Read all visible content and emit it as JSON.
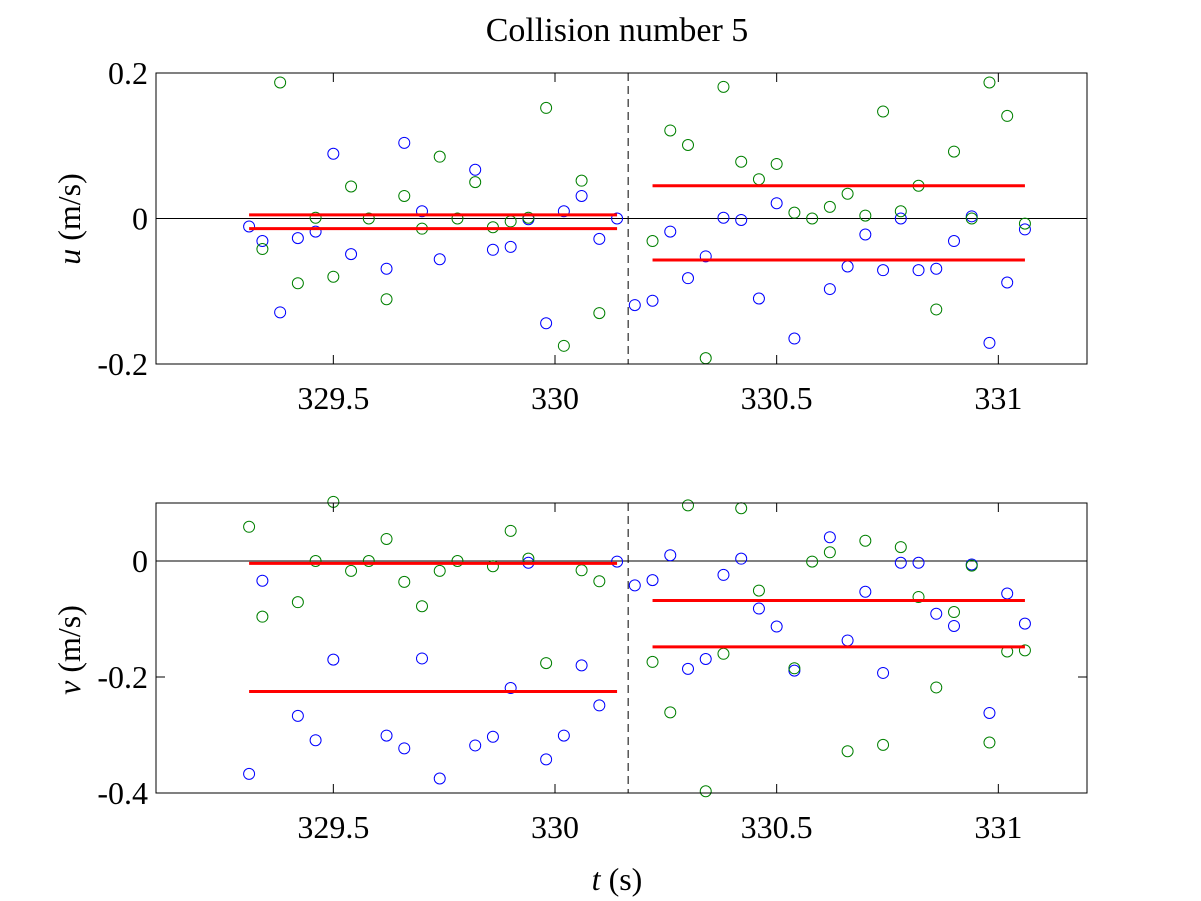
{
  "chart_data": {
    "type": "scatter",
    "title": "Collision number 5",
    "xlabel": "t",
    "xlabel_unit": "(s)",
    "collision_time": 330.165,
    "colors": {
      "blue": "#0000ff",
      "green": "#008000",
      "red": "#ff0000",
      "black": "#000000"
    },
    "panels": [
      {
        "ylabel": "u",
        "ylabel_unit": "(m/s)",
        "xlim": [
          329.1,
          331.2
        ],
        "ylim": [
          -0.2,
          0.2
        ],
        "xticks": [
          "329.5",
          "330",
          "330.5",
          "331"
        ],
        "yticks": [
          "0.2",
          "0",
          "-0.2"
        ],
        "blue": [
          [
            329.31,
            -0.011
          ],
          [
            329.34,
            -0.031
          ],
          [
            329.38,
            -0.129
          ],
          [
            329.42,
            -0.027
          ],
          [
            329.46,
            -0.018
          ],
          [
            329.5,
            0.089
          ],
          [
            329.54,
            -0.049
          ],
          [
            329.62,
            -0.069
          ],
          [
            329.66,
            0.104
          ],
          [
            329.7,
            0.01
          ],
          [
            329.74,
            -0.056
          ],
          [
            329.86,
            -0.043
          ],
          [
            329.9,
            -0.039
          ],
          [
            329.94,
            -0.001
          ],
          [
            329.98,
            -0.144
          ],
          [
            330.02,
            0.01
          ],
          [
            330.06,
            0.031
          ],
          [
            330.1,
            -0.028
          ],
          [
            330.14,
            0.0
          ],
          [
            330.18,
            -0.119
          ],
          [
            330.22,
            -0.113
          ],
          [
            330.26,
            -0.018
          ],
          [
            330.3,
            -0.082
          ],
          [
            330.34,
            -0.052
          ],
          [
            330.38,
            0.001
          ],
          [
            330.42,
            -0.002
          ],
          [
            330.46,
            -0.11
          ],
          [
            330.5,
            0.021
          ],
          [
            330.54,
            -0.165
          ],
          [
            330.62,
            -0.097
          ],
          [
            330.66,
            -0.066
          ],
          [
            330.7,
            -0.022
          ],
          [
            330.74,
            -0.071
          ],
          [
            330.78,
            0.0
          ],
          [
            330.82,
            -0.071
          ],
          [
            330.86,
            -0.069
          ],
          [
            330.9,
            -0.031
          ],
          [
            330.94,
            0.003
          ],
          [
            330.98,
            -0.171
          ],
          [
            331.02,
            -0.088
          ],
          [
            331.06,
            -0.015
          ],
          [
            329.82,
            0.067
          ]
        ],
        "green": [
          [
            329.34,
            -0.042
          ],
          [
            329.38,
            0.187
          ],
          [
            329.42,
            -0.089
          ],
          [
            329.46,
            0.001
          ],
          [
            329.5,
            -0.08
          ],
          [
            329.54,
            0.044
          ],
          [
            329.58,
            0.0
          ],
          [
            329.62,
            -0.111
          ],
          [
            329.66,
            0.031
          ],
          [
            329.7,
            -0.014
          ],
          [
            329.74,
            0.085
          ],
          [
            329.78,
            0.0
          ],
          [
            329.82,
            0.05
          ],
          [
            329.86,
            -0.012
          ],
          [
            329.9,
            -0.004
          ],
          [
            329.94,
            0.001
          ],
          [
            329.98,
            0.152
          ],
          [
            330.02,
            -0.175
          ],
          [
            330.06,
            0.052
          ],
          [
            330.1,
            -0.13
          ],
          [
            330.22,
            -0.031
          ],
          [
            330.26,
            0.121
          ],
          [
            330.3,
            0.101
          ],
          [
            330.34,
            -0.192
          ],
          [
            330.38,
            0.181
          ],
          [
            330.42,
            0.078
          ],
          [
            330.46,
            0.054
          ],
          [
            330.5,
            0.075
          ],
          [
            330.54,
            0.008
          ],
          [
            330.58,
            0.0
          ],
          [
            330.62,
            0.016
          ],
          [
            330.66,
            0.034
          ],
          [
            330.7,
            0.004
          ],
          [
            330.74,
            0.147
          ],
          [
            330.78,
            0.01
          ],
          [
            330.82,
            0.045
          ],
          [
            330.86,
            -0.125
          ],
          [
            330.9,
            0.092
          ],
          [
            330.94,
            0.0
          ],
          [
            330.98,
            0.187
          ],
          [
            331.02,
            0.141
          ],
          [
            331.06,
            -0.007
          ]
        ],
        "red_lines": [
          {
            "x": [
              329.31,
              330.14
            ],
            "y": 0.005
          },
          {
            "x": [
              329.31,
              330.14
            ],
            "y": -0.014
          },
          {
            "x": [
              330.22,
              331.06
            ],
            "y": 0.045
          },
          {
            "x": [
              330.22,
              331.06
            ],
            "y": -0.057
          }
        ]
      },
      {
        "ylabel": "v",
        "ylabel_unit": "(m/s)",
        "xlim": [
          329.1,
          331.2
        ],
        "ylim": [
          -0.4,
          0.1
        ],
        "xticks": [
          "329.5",
          "330",
          "330.5",
          "331"
        ],
        "yticks": [
          "0",
          "-0.2",
          "-0.4"
        ],
        "blue": [
          [
            329.31,
            -0.367
          ],
          [
            329.34,
            -0.034
          ],
          [
            329.42,
            -0.267
          ],
          [
            329.46,
            -0.309
          ],
          [
            329.5,
            -0.17
          ],
          [
            329.62,
            -0.301
          ],
          [
            329.66,
            -0.323
          ],
          [
            329.7,
            -0.168
          ],
          [
            329.74,
            -0.375
          ],
          [
            329.82,
            -0.318
          ],
          [
            329.86,
            -0.303
          ],
          [
            329.9,
            -0.219
          ],
          [
            329.94,
            -0.003
          ],
          [
            329.98,
            -0.342
          ],
          [
            330.02,
            -0.301
          ],
          [
            330.06,
            -0.18
          ],
          [
            330.1,
            -0.249
          ],
          [
            330.14,
            -0.001
          ],
          [
            330.18,
            -0.042
          ],
          [
            330.22,
            -0.033
          ],
          [
            330.26,
            0.01
          ],
          [
            330.3,
            -0.186
          ],
          [
            330.34,
            -0.169
          ],
          [
            330.38,
            -0.024
          ],
          [
            330.42,
            0.004
          ],
          [
            330.46,
            -0.082
          ],
          [
            330.5,
            -0.113
          ],
          [
            330.54,
            -0.189
          ],
          [
            330.62,
            0.041
          ],
          [
            330.66,
            -0.137
          ],
          [
            330.7,
            -0.053
          ],
          [
            330.74,
            -0.193
          ],
          [
            330.78,
            -0.003
          ],
          [
            330.82,
            -0.003
          ],
          [
            330.86,
            -0.091
          ],
          [
            330.9,
            -0.112
          ],
          [
            330.94,
            -0.006
          ],
          [
            330.98,
            -0.262
          ],
          [
            331.02,
            -0.056
          ],
          [
            331.06,
            -0.108
          ]
        ],
        "green": [
          [
            329.31,
            0.059
          ],
          [
            329.34,
            -0.096
          ],
          [
            329.42,
            -0.071
          ],
          [
            329.46,
            0.0
          ],
          [
            329.5,
            0.102
          ],
          [
            329.54,
            -0.017
          ],
          [
            329.58,
            0.0
          ],
          [
            329.62,
            0.038
          ],
          [
            329.66,
            -0.036
          ],
          [
            329.7,
            -0.078
          ],
          [
            329.74,
            -0.017
          ],
          [
            329.78,
            0.0
          ],
          [
            329.86,
            -0.009
          ],
          [
            329.9,
            0.052
          ],
          [
            329.94,
            0.004
          ],
          [
            329.98,
            -0.176
          ],
          [
            330.06,
            -0.016
          ],
          [
            330.1,
            -0.035
          ],
          [
            330.22,
            -0.174
          ],
          [
            330.26,
            -0.261
          ],
          [
            330.3,
            0.096
          ],
          [
            330.34,
            -0.397
          ],
          [
            330.38,
            -0.16
          ],
          [
            330.42,
            0.091
          ],
          [
            330.46,
            -0.051
          ],
          [
            330.54,
            -0.185
          ],
          [
            330.58,
            -0.001
          ],
          [
            330.62,
            0.015
          ],
          [
            330.66,
            -0.328
          ],
          [
            330.7,
            0.035
          ],
          [
            330.74,
            -0.317
          ],
          [
            330.78,
            0.024
          ],
          [
            330.82,
            -0.062
          ],
          [
            330.86,
            -0.218
          ],
          [
            330.9,
            -0.088
          ],
          [
            330.94,
            -0.008
          ],
          [
            330.98,
            -0.313
          ],
          [
            331.02,
            -0.156
          ],
          [
            331.06,
            -0.154
          ]
        ],
        "red_lines": [
          {
            "x": [
              329.31,
              330.14
            ],
            "y": -0.004
          },
          {
            "x": [
              329.31,
              330.14
            ],
            "y": -0.225
          },
          {
            "x": [
              330.22,
              331.06
            ],
            "y": -0.068
          },
          {
            "x": [
              330.22,
              331.06
            ],
            "y": -0.148
          }
        ]
      }
    ]
  }
}
